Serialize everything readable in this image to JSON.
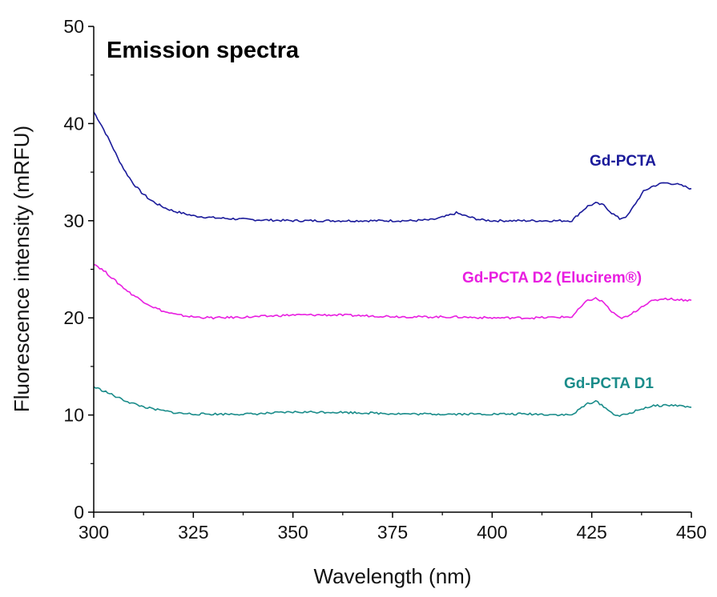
{
  "chart_data": {
    "type": "line",
    "title": "Emission spectra",
    "xlabel": "Wavelength (nm)",
    "ylabel": "Fluorescence intensity (mRFU)",
    "xlim": [
      300,
      450
    ],
    "ylim": [
      0,
      50
    ],
    "xticks": [
      300,
      325,
      350,
      375,
      400,
      425,
      450
    ],
    "yticks": [
      0,
      10,
      20,
      30,
      40,
      50
    ],
    "grid": false,
    "series": [
      {
        "name": "Gd-PCTA",
        "color": "#1a1a9a",
        "x": [
          300,
          302,
          304,
          306,
          308,
          310,
          312,
          314,
          316,
          318,
          320,
          325,
          330,
          340,
          350,
          360,
          370,
          380,
          385,
          388,
          391,
          394,
          397,
          400,
          410,
          420,
          422,
          424,
          426,
          428,
          430,
          432,
          434,
          436,
          438,
          440,
          443,
          446,
          450
        ],
        "y": [
          41.2,
          39.8,
          38.2,
          36.5,
          35.0,
          33.8,
          32.9,
          32.2,
          31.7,
          31.3,
          31.0,
          30.5,
          30.3,
          30.1,
          30.0,
          30.0,
          30.0,
          30.0,
          30.1,
          30.4,
          30.8,
          30.4,
          30.1,
          30.0,
          30.0,
          30.0,
          30.8,
          31.5,
          31.8,
          31.6,
          30.8,
          30.2,
          30.5,
          31.8,
          33.0,
          33.5,
          33.9,
          33.8,
          33.3
        ]
      },
      {
        "name": "Gd-PCTA D2 (Elucirem®)",
        "color": "#e81ee0",
        "x": [
          300,
          303,
          306,
          309,
          312,
          315,
          318,
          321,
          325,
          330,
          340,
          350,
          360,
          370,
          380,
          390,
          400,
          410,
          420,
          422,
          424,
          426,
          428,
          430,
          432,
          434,
          436,
          438,
          440,
          443,
          446,
          450
        ],
        "y": [
          25.6,
          24.7,
          23.6,
          22.6,
          21.8,
          21.1,
          20.6,
          20.3,
          20.1,
          20.0,
          20.1,
          20.3,
          20.3,
          20.2,
          20.1,
          20.1,
          20.0,
          20.0,
          20.1,
          21.0,
          21.8,
          22.0,
          21.6,
          20.6,
          20.0,
          20.1,
          20.7,
          21.3,
          21.7,
          22.0,
          21.9,
          21.8
        ]
      },
      {
        "name": "Gd-PCTA D1",
        "color": "#1a8c8a",
        "x": [
          300,
          303,
          306,
          309,
          312,
          315,
          318,
          321,
          325,
          330,
          340,
          350,
          360,
          370,
          380,
          390,
          400,
          410,
          420,
          422,
          424,
          426,
          428,
          430,
          432,
          434,
          436,
          438,
          440,
          443,
          446,
          450
        ],
        "y": [
          12.9,
          12.4,
          11.8,
          11.3,
          10.9,
          10.6,
          10.4,
          10.2,
          10.1,
          10.1,
          10.1,
          10.3,
          10.3,
          10.2,
          10.1,
          10.1,
          10.1,
          10.1,
          10.0,
          10.6,
          11.2,
          11.4,
          10.9,
          10.2,
          9.9,
          10.1,
          10.4,
          10.7,
          10.9,
          11.0,
          11.0,
          10.8
        ]
      }
    ]
  }
}
